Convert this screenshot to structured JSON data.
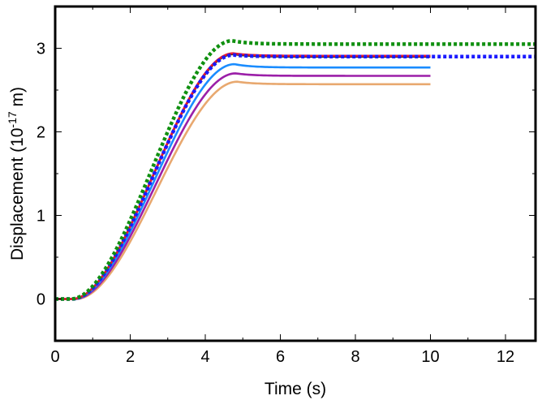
{
  "chart_data": {
    "type": "line",
    "xlabel": "Time (s)",
    "ylabel": {
      "prefix": "Displacement (10",
      "exponent": "-17",
      "suffix": " m)"
    },
    "xlim": [
      0,
      12.8
    ],
    "ylim": [
      -0.5,
      3.5
    ],
    "x_ticks": [
      {
        "value": 0,
        "label": "0"
      },
      {
        "value": 2,
        "label": "2"
      },
      {
        "value": 4,
        "label": "4"
      },
      {
        "value": 6,
        "label": "6"
      },
      {
        "value": 8,
        "label": "8"
      },
      {
        "value": 10,
        "label": "10"
      },
      {
        "value": 12,
        "label": "12"
      }
    ],
    "y_ticks": [
      {
        "value": 0,
        "label": "0"
      },
      {
        "value": 1,
        "label": "1"
      },
      {
        "value": 2,
        "label": "2"
      },
      {
        "value": 3,
        "label": "3"
      }
    ],
    "grid": false,
    "legend": "none",
    "series": [
      {
        "color": "#e8a86f",
        "dash": "solid",
        "x_end": 10.0,
        "final": 2.57,
        "peak": 2.6,
        "t_peak": 4.75,
        "delay": 0.1
      },
      {
        "color": "#9b1fa8",
        "dash": "solid",
        "x_end": 10.0,
        "final": 2.67,
        "peak": 2.7,
        "t_peak": 4.75,
        "delay": 0.06
      },
      {
        "color": "#1a8cff",
        "dash": "solid",
        "x_end": 10.0,
        "final": 2.77,
        "peak": 2.81,
        "t_peak": 4.75,
        "delay": 0.03
      },
      {
        "color": "#2a2a2a",
        "dash": "solid",
        "x_end": 10.0,
        "final": 2.9,
        "peak": 2.93,
        "t_peak": 4.75,
        "delay": 0.0
      },
      {
        "color": "#e8192c",
        "dash": "solid",
        "x_end": 10.0,
        "final": 2.91,
        "peak": 2.94,
        "t_peak": 4.75,
        "delay": 0.0
      },
      {
        "color": "#1a1aff",
        "dash": "dotted",
        "x_end": 12.8,
        "final": 2.9,
        "peak": 2.92,
        "t_peak": 4.75,
        "delay": 0.0
      },
      {
        "color": "#109010",
        "dash": "dotted",
        "x_end": 12.8,
        "final": 3.05,
        "peak": 3.09,
        "t_peak": 4.75,
        "delay": -0.03
      }
    ]
  }
}
